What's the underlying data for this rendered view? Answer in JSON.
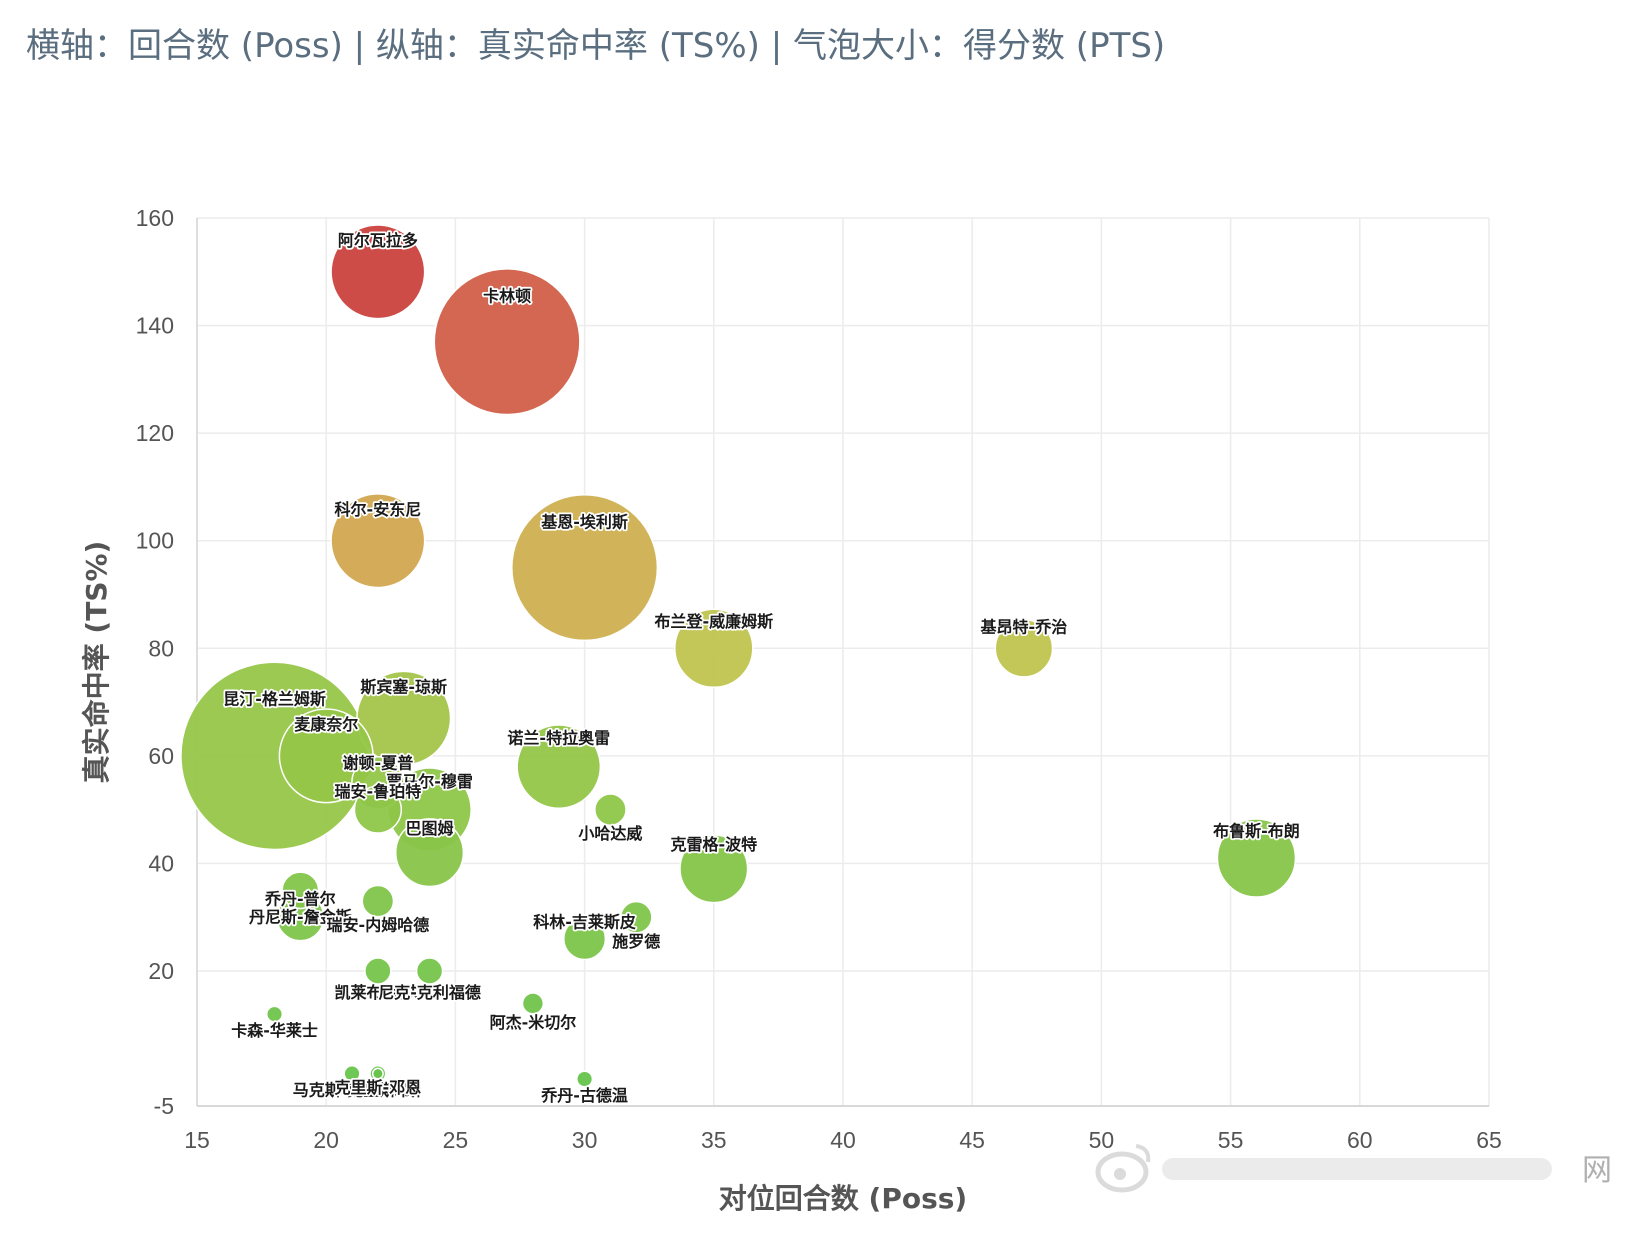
{
  "caption": "横轴：回合数 (Poss) | 纵轴：真实命中率 (TS%) | 气泡大小：得分数 (PTS)",
  "chart_data": {
    "type": "scatter",
    "subtype": "bubble",
    "xlabel": "对位回合数 (Poss)",
    "ylabel": "真实命中率 (TS%)",
    "xlim": [
      15,
      65
    ],
    "ylim": [
      -5,
      160
    ],
    "x_ticks": [
      15,
      20,
      25,
      30,
      35,
      40,
      45,
      50,
      55,
      60,
      65
    ],
    "y_ticks": [
      -5,
      20,
      40,
      60,
      80,
      100,
      120,
      140,
      160
    ],
    "grid": true,
    "color_scale": "green (low TS%) to red (high TS%)",
    "points": [
      {
        "name": "阿尔瓦拉多",
        "x": 22,
        "y": 150,
        "size": 18
      },
      {
        "name": "卡林顿",
        "x": 27,
        "y": 137,
        "size": 28
      },
      {
        "name": "科尔-安东尼",
        "x": 22,
        "y": 100,
        "size": 18
      },
      {
        "name": "基恩-埃利斯",
        "x": 30,
        "y": 95,
        "size": 28
      },
      {
        "name": "布兰登-威廉姆斯",
        "x": 35,
        "y": 80,
        "size": 15
      },
      {
        "name": "基昂特-乔治",
        "x": 47,
        "y": 80,
        "size": 11
      },
      {
        "name": "昆汀-格兰姆斯",
        "x": 18,
        "y": 60,
        "size": 36
      },
      {
        "name": "斯宾塞-琼斯",
        "x": 23,
        "y": 67,
        "size": 18
      },
      {
        "name": "麦康奈尔",
        "x": 20,
        "y": 60,
        "size": 18
      },
      {
        "name": "诺兰-特拉奥雷",
        "x": 29,
        "y": 58,
        "size": 16
      },
      {
        "name": "谢顿-夏普",
        "x": 22,
        "y": 55,
        "size": 10
      },
      {
        "name": "贾马尔-穆雷",
        "x": 24,
        "y": 50,
        "size": 16
      },
      {
        "name": "瑞安-鲁珀特",
        "x": 22,
        "y": 50,
        "size": 9
      },
      {
        "name": "小哈达威",
        "x": 31,
        "y": 50,
        "size": 6
      },
      {
        "name": "巴图姆",
        "x": 24,
        "y": 42,
        "size": 13
      },
      {
        "name": "克雷格-波特",
        "x": 35,
        "y": 39,
        "size": 13
      },
      {
        "name": "布鲁斯-布朗",
        "x": 56,
        "y": 41,
        "size": 15
      },
      {
        "name": "丹尼斯-詹金斯",
        "x": 19,
        "y": 35,
        "size": 7
      },
      {
        "name": "瑞安-内姆哈德",
        "x": 22,
        "y": 33,
        "size": 6
      },
      {
        "name": "乔丹-普尔",
        "x": 19,
        "y": 30,
        "size": 9
      },
      {
        "name": "施罗德",
        "x": 32,
        "y": 30,
        "size": 6
      },
      {
        "name": "科林-吉莱斯皮",
        "x": 30,
        "y": 26,
        "size": 8
      },
      {
        "name": "凯莱布-洛夫",
        "x": 22,
        "y": 20,
        "size": 5
      },
      {
        "name": "尼克-克利福德",
        "x": 24,
        "y": 20,
        "size": 5
      },
      {
        "name": "阿杰-米切尔",
        "x": 28,
        "y": 14,
        "size": 4
      },
      {
        "name": "卡森-华莱士",
        "x": 18,
        "y": 12,
        "size": 3
      },
      {
        "name": "科比-桑德斯",
        "x": 22,
        "y": 1,
        "size": 3
      },
      {
        "name": "马克斯-克里斯蒂",
        "x": 21,
        "y": 1,
        "size": 3
      },
      {
        "name": "克里斯-邓恩",
        "x": 22,
        "y": 1,
        "size": 2
      },
      {
        "name": "乔丹-古德温",
        "x": 30,
        "y": 0,
        "size": 3
      }
    ]
  },
  "watermark_text": "网"
}
